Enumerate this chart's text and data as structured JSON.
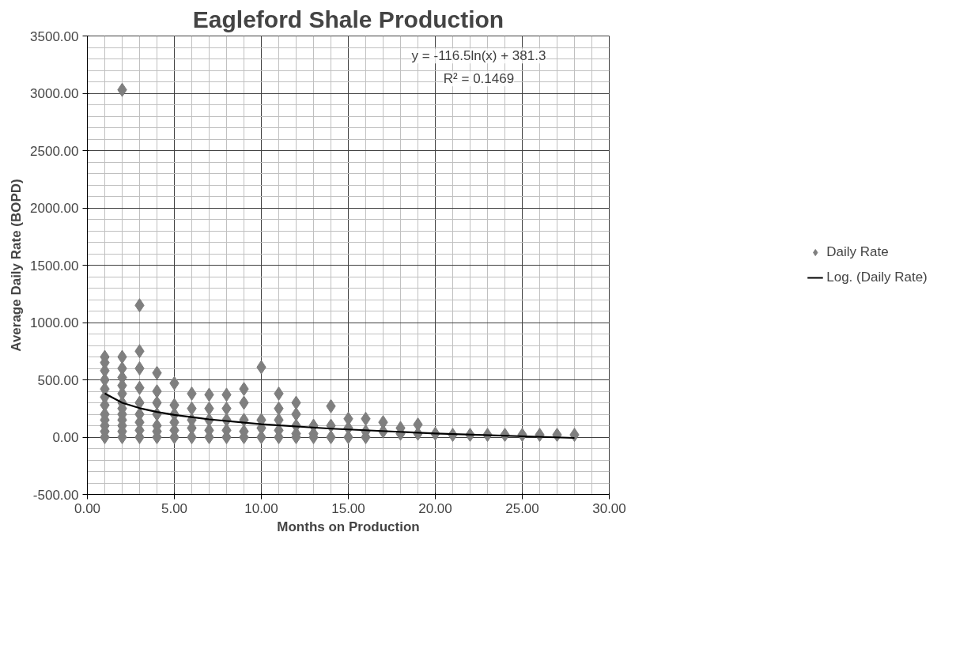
{
  "chart_data": {
    "type": "scatter",
    "title": "Eagleford Shale Production",
    "xlabel": "Months on Production",
    "ylabel": "Average Daily Rate (BOPD)",
    "annotations": [
      "y = -116.5ln(x) + 381.3",
      "R² = 0.1469"
    ],
    "series": [
      {
        "name": "Daily Rate",
        "color": "#7f7f7f",
        "marker": "diamond",
        "x": [
          1,
          1,
          1,
          1,
          1,
          1,
          1,
          1,
          1,
          1,
          1,
          1,
          2,
          2,
          2,
          2,
          2,
          2,
          2,
          2,
          2,
          2,
          2,
          2,
          2,
          3,
          3,
          3,
          3,
          3,
          3,
          3,
          3,
          3,
          4,
          4,
          4,
          4,
          4,
          4,
          4,
          5,
          5,
          5,
          5,
          5,
          5,
          6,
          6,
          6,
          6,
          6,
          7,
          7,
          7,
          7,
          7,
          8,
          8,
          8,
          8,
          8,
          9,
          9,
          9,
          9,
          9,
          10,
          10,
          10,
          10,
          11,
          11,
          11,
          11,
          11,
          12,
          12,
          12,
          12,
          12,
          13,
          13,
          13,
          14,
          14,
          14,
          15,
          15,
          15,
          16,
          16,
          16,
          17,
          17,
          18,
          18,
          19,
          19,
          20,
          21,
          22,
          23,
          24,
          25,
          26,
          27,
          28
        ],
        "values": [
          0,
          50,
          100,
          150,
          200,
          280,
          350,
          420,
          500,
          580,
          650,
          700,
          3030,
          700,
          600,
          520,
          450,
          380,
          300,
          250,
          200,
          150,
          100,
          50,
          0,
          1150,
          750,
          600,
          430,
          300,
          200,
          130,
          60,
          0,
          560,
          400,
          300,
          200,
          100,
          50,
          0,
          470,
          280,
          200,
          130,
          60,
          0,
          380,
          250,
          150,
          80,
          0,
          370,
          250,
          150,
          60,
          0,
          370,
          250,
          150,
          60,
          0,
          420,
          300,
          150,
          50,
          0,
          610,
          150,
          80,
          0,
          380,
          250,
          150,
          60,
          0,
          300,
          200,
          100,
          30,
          0,
          100,
          30,
          0,
          270,
          100,
          0,
          160,
          80,
          0,
          160,
          50,
          0,
          130,
          50,
          80,
          30,
          110,
          30,
          30,
          20,
          20,
          20,
          20,
          20,
          20,
          20,
          20
        ]
      },
      {
        "name": "Log. (Daily Rate)",
        "type": "line",
        "color": "#000000",
        "line_style": "solid",
        "x": [
          1,
          2,
          3,
          4,
          5,
          7,
          10,
          14,
          20,
          28
        ],
        "values": [
          381,
          300,
          253,
          220,
          194,
          155,
          113,
          74,
          32,
          -7
        ]
      }
    ],
    "xlim": [
      0,
      30
    ],
    "ylim": [
      -500,
      3500
    ],
    "xticks": [
      {
        "value": 0,
        "label": "0.00"
      },
      {
        "value": 5,
        "label": "5.00"
      },
      {
        "value": 10,
        "label": "10.00"
      },
      {
        "value": 15,
        "label": "15.00"
      },
      {
        "value": 20,
        "label": "20.00"
      },
      {
        "value": 25,
        "label": "25.00"
      },
      {
        "value": 30,
        "label": "30.00"
      }
    ],
    "yticks": [
      {
        "value": -500,
        "label": "-500.00"
      },
      {
        "value": 0,
        "label": "0.00"
      },
      {
        "value": 500,
        "label": "500.00"
      },
      {
        "value": 1000,
        "label": "1000.00"
      },
      {
        "value": 1500,
        "label": "1500.00"
      },
      {
        "value": 2000,
        "label": "2000.00"
      },
      {
        "value": 2500,
        "label": "2500.00"
      },
      {
        "value": 3000,
        "label": "3000.00"
      },
      {
        "value": 3500,
        "label": "3500.00"
      }
    ],
    "grid": true,
    "legend": "right"
  }
}
